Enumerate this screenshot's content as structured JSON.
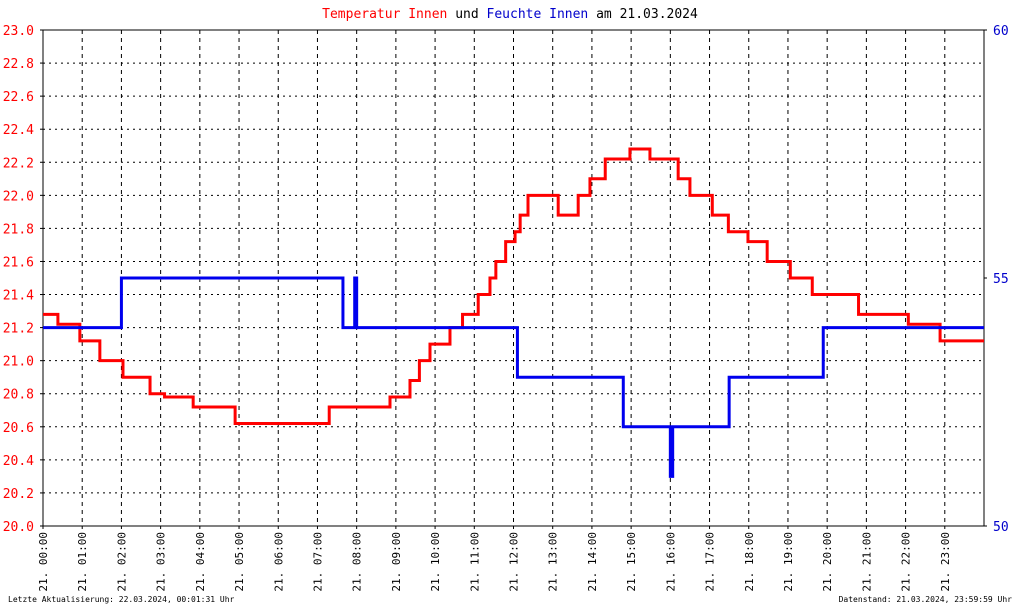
{
  "chart_data": {
    "type": "line",
    "title_parts": [
      {
        "text": "Temperatur Innen",
        "color": "#ff0000"
      },
      {
        "text": "und",
        "color": "#000000"
      },
      {
        "text": "Feuchte Innen",
        "color": "#0000cc"
      },
      {
        "text": "am 21.03.2024",
        "color": "#000000"
      }
    ],
    "footer_left": "Letzte Aktualisierung: 22.03.2024, 00:01:31 Uhr",
    "footer_right": "Datenstand: 21.03.2024, 23:59:59 Uhr",
    "step": true,
    "grid": true,
    "xlim": [
      0,
      24
    ],
    "xticks": [
      {
        "value": 0,
        "label": "21. 00:00"
      },
      {
        "value": 1,
        "label": "21. 01:00"
      },
      {
        "value": 2,
        "label": "21. 02:00"
      },
      {
        "value": 3,
        "label": "21. 03:00"
      },
      {
        "value": 4,
        "label": "21. 04:00"
      },
      {
        "value": 5,
        "label": "21. 05:00"
      },
      {
        "value": 6,
        "label": "21. 06:00"
      },
      {
        "value": 7,
        "label": "21. 07:00"
      },
      {
        "value": 8,
        "label": "21. 08:00"
      },
      {
        "value": 9,
        "label": "21. 09:00"
      },
      {
        "value": 10,
        "label": "21. 10:00"
      },
      {
        "value": 11,
        "label": "21. 11:00"
      },
      {
        "value": 12,
        "label": "21. 12:00"
      },
      {
        "value": 13,
        "label": "21. 13:00"
      },
      {
        "value": 14,
        "label": "21. 14:00"
      },
      {
        "value": 15,
        "label": "21. 15:00"
      },
      {
        "value": 16,
        "label": "21. 16:00"
      },
      {
        "value": 17,
        "label": "21. 17:00"
      },
      {
        "value": 18,
        "label": "21. 18:00"
      },
      {
        "value": 19,
        "label": "21. 19:00"
      },
      {
        "value": 20,
        "label": "21. 20:00"
      },
      {
        "value": 21,
        "label": "21. 21:00"
      },
      {
        "value": 22,
        "label": "21. 22:00"
      },
      {
        "value": 23,
        "label": "21. 23:00"
      }
    ],
    "ylim": [
      20,
      23
    ],
    "yticks": [
      {
        "value": 20,
        "label": "20.0"
      },
      20.2,
      20.4,
      20.6,
      20.8,
      {
        "value": 21,
        "label": "21.0"
      },
      21.2,
      21.4,
      21.6,
      21.8,
      {
        "value": 22,
        "label": "22.0"
      },
      22.2,
      22.4,
      22.6,
      22.8,
      {
        "value": 23,
        "label": "23.0"
      }
    ],
    "y_color": "#ff0000",
    "y2lim": [
      50,
      60
    ],
    "y2ticks": [
      50,
      55,
      60
    ],
    "y2_color": "#0000cc",
    "series": [
      {
        "name": "Temperatur Innen",
        "color": "#ff0000",
        "x": [
          0,
          0.38,
          0.94,
          1.45,
          2.04,
          2.73,
          3.1,
          3.83,
          4.9,
          7.3,
          8.85,
          9.36,
          9.6,
          9.87,
          10.38,
          10.7,
          11.1,
          11.4,
          11.55,
          11.8,
          12.04,
          12.17,
          12.37,
          13.14,
          13.65,
          13.95,
          14.34,
          14.97,
          15.48,
          16.2,
          16.5,
          17.07,
          17.48,
          17.98,
          18.47,
          19.06,
          19.62,
          20.8,
          22.07,
          22.88,
          24
        ],
        "values": [
          21.28,
          21.22,
          21.12,
          21.0,
          20.9,
          20.8,
          20.78,
          20.72,
          20.62,
          20.72,
          20.78,
          20.88,
          21.0,
          21.1,
          21.2,
          21.28,
          21.4,
          21.5,
          21.6,
          21.72,
          21.78,
          21.88,
          22.0,
          21.88,
          22.0,
          22.1,
          22.22,
          22.28,
          22.22,
          22.1,
          22.0,
          21.88,
          21.78,
          21.72,
          21.6,
          21.5,
          21.4,
          21.28,
          21.22,
          21.12,
          21.12
        ]
      },
      {
        "name": "Feuchte Innen",
        "color": "#0000ee",
        "axis": "y2",
        "x": [
          0,
          2.0,
          7.65,
          7.95,
          8.0,
          12.1,
          14.8,
          16.0,
          16.06,
          17.5,
          19.9,
          24
        ],
        "values": [
          54,
          55,
          54,
          55,
          54,
          53,
          52,
          51,
          52,
          53,
          54,
          54
        ]
      }
    ]
  }
}
